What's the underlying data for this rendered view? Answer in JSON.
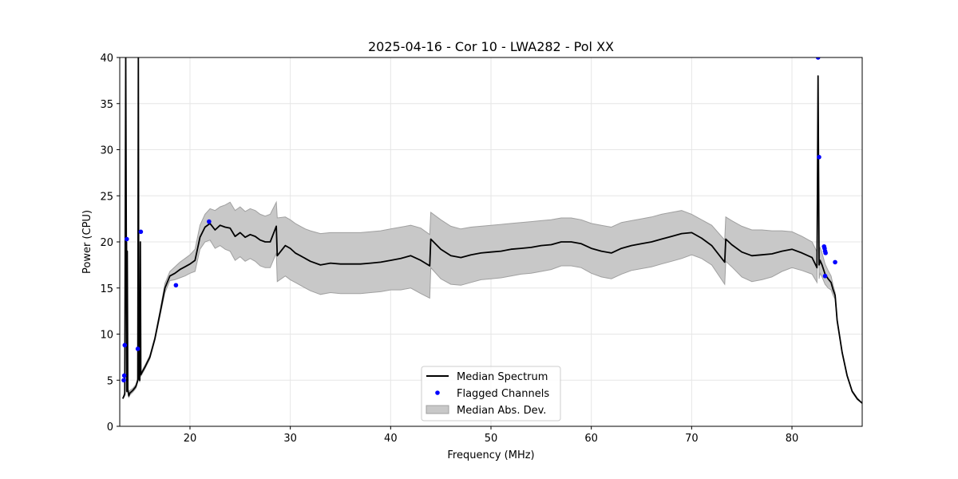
{
  "chart_data": {
    "type": "line",
    "title": "2025-04-16 - Cor 10 - LWA282 - Pol XX",
    "xlabel": "Frequency (MHz)",
    "ylabel": "Power (CPU)",
    "xlim": [
      13,
      87
    ],
    "ylim": [
      0,
      40
    ],
    "xticks": [
      20,
      30,
      40,
      50,
      60,
      70,
      80
    ],
    "yticks": [
      0,
      5,
      10,
      15,
      20,
      25,
      30,
      35,
      40
    ],
    "grid": true,
    "legend_position": "bottom-center",
    "legend": [
      "Median Spectrum",
      "Flagged Channels",
      "Median Abs. Dev."
    ],
    "colors": {
      "median": "#000000",
      "flagged": "#0000ff",
      "mad_fill": "#c8c8c8",
      "mad_edge": "#a0a0a0"
    },
    "series": [
      {
        "name": "Median Spectrum",
        "x": [
          13.3,
          13.5,
          13.6,
          13.7,
          13.75,
          13.8,
          13.9,
          14.0,
          14.3,
          14.6,
          14.8,
          14.85,
          14.9,
          15.0,
          15.05,
          15.1,
          15.2,
          15.5,
          16.0,
          16.5,
          17.0,
          17.5,
          18.0,
          18.5,
          19.0,
          19.5,
          20.0,
          20.5,
          21.0,
          21.5,
          22.0,
          22.5,
          23.0,
          23.5,
          24.0,
          24.5,
          25.0,
          25.5,
          26.0,
          26.5,
          27.0,
          27.5,
          28.0,
          28.6,
          28.7,
          29.5,
          30.0,
          30.5,
          31.0,
          31.5,
          32.0,
          33.0,
          34.0,
          35.0,
          36.0,
          37.0,
          38.0,
          39.0,
          40.0,
          41.0,
          42.0,
          43.0,
          43.9,
          44.0,
          45.0,
          46.0,
          47.0,
          48.0,
          49.0,
          50.0,
          51.0,
          52.0,
          53.0,
          54.0,
          55.0,
          56.0,
          57.0,
          58.0,
          59.0,
          60.0,
          61.0,
          62.0,
          63.0,
          64.0,
          65.0,
          66.0,
          67.0,
          68.0,
          69.0,
          70.0,
          71.0,
          72.0,
          73.3,
          73.4,
          74.0,
          75.0,
          76.0,
          77.0,
          78.0,
          79.0,
          80.0,
          81.0,
          82.0,
          82.5,
          82.6,
          82.7,
          82.8,
          83.0,
          83.3,
          83.6,
          83.9,
          84.1,
          84.3,
          84.5,
          85.0,
          85.5,
          86.0,
          86.5,
          87.0
        ],
        "values": [
          3.0,
          3.5,
          40.0,
          3.8,
          19.0,
          4.0,
          3.3,
          3.6,
          3.9,
          4.3,
          5.0,
          40.0,
          5.2,
          5.0,
          20.0,
          5.6,
          5.8,
          6.4,
          7.5,
          9.5,
          12.2,
          15.0,
          16.3,
          16.6,
          17.0,
          17.3,
          17.6,
          18.0,
          20.5,
          21.6,
          22.0,
          21.3,
          21.8,
          21.6,
          21.5,
          20.6,
          21.0,
          20.5,
          20.8,
          20.6,
          20.2,
          20.0,
          20.0,
          21.7,
          18.5,
          19.6,
          19.3,
          18.8,
          18.5,
          18.2,
          17.9,
          17.5,
          17.7,
          17.6,
          17.6,
          17.6,
          17.7,
          17.8,
          18.0,
          18.2,
          18.5,
          18.0,
          17.4,
          20.3,
          19.2,
          18.5,
          18.3,
          18.6,
          18.8,
          18.9,
          19.0,
          19.2,
          19.3,
          19.4,
          19.6,
          19.7,
          20.0,
          20.0,
          19.8,
          19.3,
          19.0,
          18.8,
          19.3,
          19.6,
          19.8,
          20.0,
          20.3,
          20.6,
          20.9,
          21.0,
          20.4,
          19.6,
          17.8,
          20.3,
          19.7,
          18.9,
          18.5,
          18.6,
          18.7,
          19.0,
          19.2,
          18.8,
          18.3,
          17.2,
          38.0,
          17.5,
          18.0,
          17.5,
          16.5,
          16.0,
          15.6,
          14.8,
          14.2,
          11.5,
          8.0,
          5.5,
          3.8,
          3.0,
          2.5
        ],
        "mad_upper": [
          3.0,
          3.8,
          33.0,
          4.0,
          20.0,
          4.3,
          3.6,
          3.9,
          4.1,
          4.5,
          5.2,
          25.0,
          5.4,
          5.2,
          19.0,
          5.8,
          6.0,
          6.6,
          7.7,
          9.7,
          12.5,
          15.5,
          16.8,
          17.3,
          17.8,
          18.2,
          18.6,
          19.2,
          21.8,
          23.0,
          23.6,
          23.4,
          23.8,
          24.0,
          24.3,
          23.4,
          23.8,
          23.3,
          23.6,
          23.4,
          23.0,
          22.8,
          23.0,
          24.3,
          22.6,
          22.7,
          22.4,
          22.0,
          21.7,
          21.4,
          21.2,
          20.9,
          21.0,
          21.0,
          21.0,
          21.0,
          21.1,
          21.2,
          21.4,
          21.6,
          21.8,
          21.5,
          20.8,
          23.2,
          22.4,
          21.7,
          21.4,
          21.6,
          21.7,
          21.8,
          21.9,
          22.0,
          22.1,
          22.2,
          22.3,
          22.4,
          22.6,
          22.6,
          22.4,
          22.0,
          21.8,
          21.6,
          22.1,
          22.3,
          22.5,
          22.7,
          23.0,
          23.2,
          23.4,
          23.0,
          22.4,
          21.8,
          20.2,
          22.7,
          22.3,
          21.7,
          21.3,
          21.3,
          21.2,
          21.2,
          21.1,
          20.6,
          20.0,
          18.9,
          38.0,
          19.0,
          19.4,
          18.8,
          17.6,
          16.9,
          16.3,
          15.3,
          14.5,
          11.6,
          8.1,
          5.6,
          3.9,
          3.1,
          2.5
        ],
        "mad_lower": [
          3.0,
          3.3,
          35.0,
          3.6,
          18.0,
          3.8,
          3.1,
          3.4,
          3.7,
          4.1,
          4.8,
          30.0,
          5.0,
          4.8,
          19.0,
          5.4,
          5.6,
          6.2,
          7.3,
          9.3,
          11.9,
          14.5,
          15.8,
          15.9,
          16.1,
          16.3,
          16.6,
          16.8,
          19.2,
          20.0,
          20.2,
          19.3,
          19.6,
          19.2,
          19.0,
          18.0,
          18.4,
          17.9,
          18.2,
          17.9,
          17.4,
          17.2,
          17.2,
          18.8,
          15.7,
          16.3,
          15.9,
          15.6,
          15.3,
          15.0,
          14.7,
          14.3,
          14.5,
          14.4,
          14.4,
          14.4,
          14.5,
          14.6,
          14.8,
          14.8,
          15.0,
          14.4,
          13.9,
          17.2,
          16.0,
          15.4,
          15.3,
          15.6,
          15.9,
          16.0,
          16.1,
          16.3,
          16.5,
          16.6,
          16.8,
          17.0,
          17.4,
          17.4,
          17.2,
          16.6,
          16.2,
          16.0,
          16.5,
          16.9,
          17.1,
          17.3,
          17.6,
          17.9,
          18.2,
          18.6,
          18.2,
          17.5,
          15.4,
          17.9,
          17.3,
          16.2,
          15.7,
          15.9,
          16.2,
          16.8,
          17.2,
          16.9,
          16.5,
          15.6,
          38.0,
          16.0,
          16.6,
          16.2,
          15.4,
          15.0,
          14.8,
          14.2,
          13.8,
          11.3,
          7.9,
          5.4,
          3.7,
          2.9,
          2.5
        ]
      },
      {
        "name": "Flagged Channels",
        "x": [
          13.4,
          13.45,
          13.5,
          13.7,
          14.8,
          15.1,
          18.6,
          21.9,
          82.6,
          82.7,
          83.2,
          83.25,
          83.3,
          83.35,
          83.3,
          84.3
        ],
        "values": [
          5.0,
          5.5,
          8.8,
          20.3,
          8.4,
          21.1,
          15.3,
          22.2,
          40.0,
          29.2,
          19.5,
          19.3,
          19.0,
          18.8,
          16.3,
          17.8
        ]
      }
    ]
  }
}
